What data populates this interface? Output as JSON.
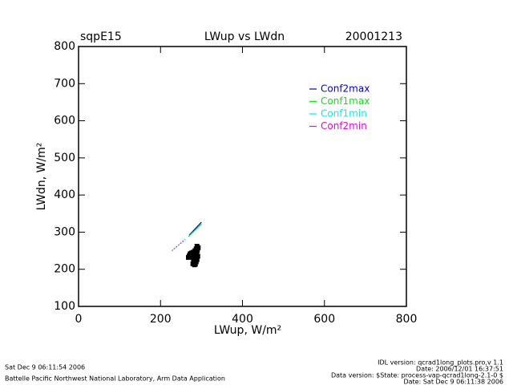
{
  "chart_data": {
    "type": "scatter",
    "site": "sqpE15",
    "title": "LWup vs LWdn",
    "date": "20001213",
    "xlabel": "LWup, W/m²",
    "ylabel": "LWdn, W/m²",
    "xlim": [
      0,
      800
    ],
    "ylim": [
      100,
      800
    ],
    "xticks": [
      0,
      200,
      400,
      600,
      800
    ],
    "yticks": [
      100,
      200,
      300,
      400,
      500,
      600,
      700,
      800
    ],
    "points": {
      "color": "#000000",
      "x": [
        268,
        270,
        272,
        274,
        276,
        278,
        280,
        282,
        284,
        286,
        288,
        290,
        292,
        289,
        287,
        285,
        283,
        281,
        279,
        283,
        285,
        287,
        289,
        291,
        286,
        284,
        282,
        280,
        276,
        273
      ],
      "y": [
        232,
        236,
        240,
        238,
        244,
        242,
        246,
        240,
        236,
        232,
        238,
        250,
        258,
        262,
        255,
        228,
        222,
        218,
        215,
        212,
        214,
        220,
        226,
        235,
        245,
        250,
        226,
        230,
        234,
        242
      ]
    },
    "series": [
      {
        "name": "Conf2max",
        "color": "#0000dd",
        "dashed": false,
        "x": [
          270,
          300
        ],
        "y": [
          292,
          327
        ]
      },
      {
        "name": "Conf1max",
        "color": "#00ee00",
        "dashed": false,
        "x": [
          268,
          300
        ],
        "y": [
          288,
          322
        ]
      },
      {
        "name": "Conf1min",
        "color": "#00eeee",
        "dashed": true,
        "x": [
          232,
          262
        ],
        "y": [
          254,
          283
        ]
      },
      {
        "name": "Conf2min",
        "color": "#ee00ee",
        "dashed": true,
        "x": [
          228,
          258
        ],
        "y": [
          250,
          278
        ]
      }
    ],
    "footer_left": [
      "Sat Dec  9 06:11:54 2006",
      "Battelle Pacific Northwest National Laboratory, Arm Data Application"
    ],
    "footer_right": [
      "IDL version: qcrad1long_plots.pro,v 1.1",
      "Date: 2006/12/01 16:37:51",
      "Data version: $State: process-vap-qcrad1long-2.1-0 $",
      "Date: Sat Dec  9 06:11:38 2006"
    ]
  }
}
